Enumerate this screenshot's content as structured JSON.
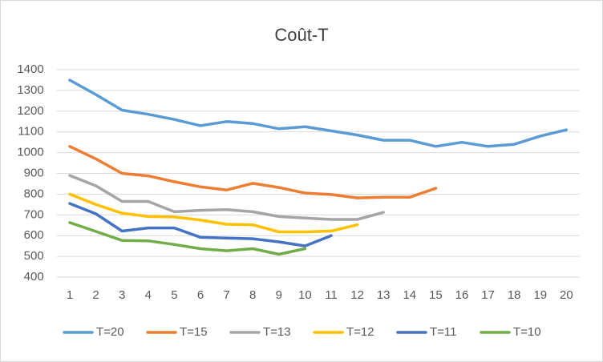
{
  "chart_data": {
    "type": "line",
    "title": "Coût-T",
    "categories": [
      1,
      2,
      3,
      4,
      5,
      6,
      7,
      8,
      9,
      10,
      11,
      12,
      13,
      14,
      15,
      16,
      17,
      18,
      19,
      20
    ],
    "ylim": [
      400,
      1400
    ],
    "yticks": [
      400,
      500,
      600,
      700,
      800,
      900,
      1000,
      1100,
      1200,
      1300,
      1400
    ],
    "grid": true,
    "legend": "bottom",
    "series": [
      {
        "name": "T=20",
        "color": "#5b9bd5",
        "values": [
          1350,
          1280,
          1205,
          1185,
          1160,
          1130,
          1150,
          1140,
          1115,
          1125,
          1105,
          1085,
          1060,
          1060,
          1030,
          1050,
          1030,
          1040,
          1080,
          1110
        ]
      },
      {
        "name": "T=15",
        "color": "#ed7d31",
        "values": [
          1030,
          970,
          900,
          888,
          860,
          835,
          820,
          852,
          832,
          805,
          798,
          782,
          785,
          785,
          828,
          null,
          null,
          null,
          null,
          null
        ]
      },
      {
        "name": "T=13",
        "color": "#a5a5a5",
        "values": [
          890,
          840,
          765,
          765,
          715,
          722,
          725,
          715,
          692,
          685,
          678,
          678,
          712,
          null,
          null,
          null,
          null,
          null,
          null,
          null
        ]
      },
      {
        "name": "T=12",
        "color": "#ffc000",
        "values": [
          800,
          750,
          708,
          692,
          690,
          675,
          655,
          652,
          618,
          618,
          622,
          652,
          null,
          null,
          null,
          null,
          null,
          null,
          null,
          null
        ]
      },
      {
        "name": "T=11",
        "color": "#4472c4",
        "values": [
          755,
          705,
          622,
          637,
          637,
          592,
          588,
          585,
          570,
          550,
          600,
          null,
          null,
          null,
          null,
          null,
          null,
          null,
          null,
          null
        ]
      },
      {
        "name": "T=10",
        "color": "#70ad47",
        "values": [
          663,
          620,
          577,
          575,
          557,
          537,
          527,
          537,
          510,
          537,
          null,
          null,
          null,
          null,
          null,
          null,
          null,
          null,
          null,
          null
        ]
      }
    ]
  }
}
